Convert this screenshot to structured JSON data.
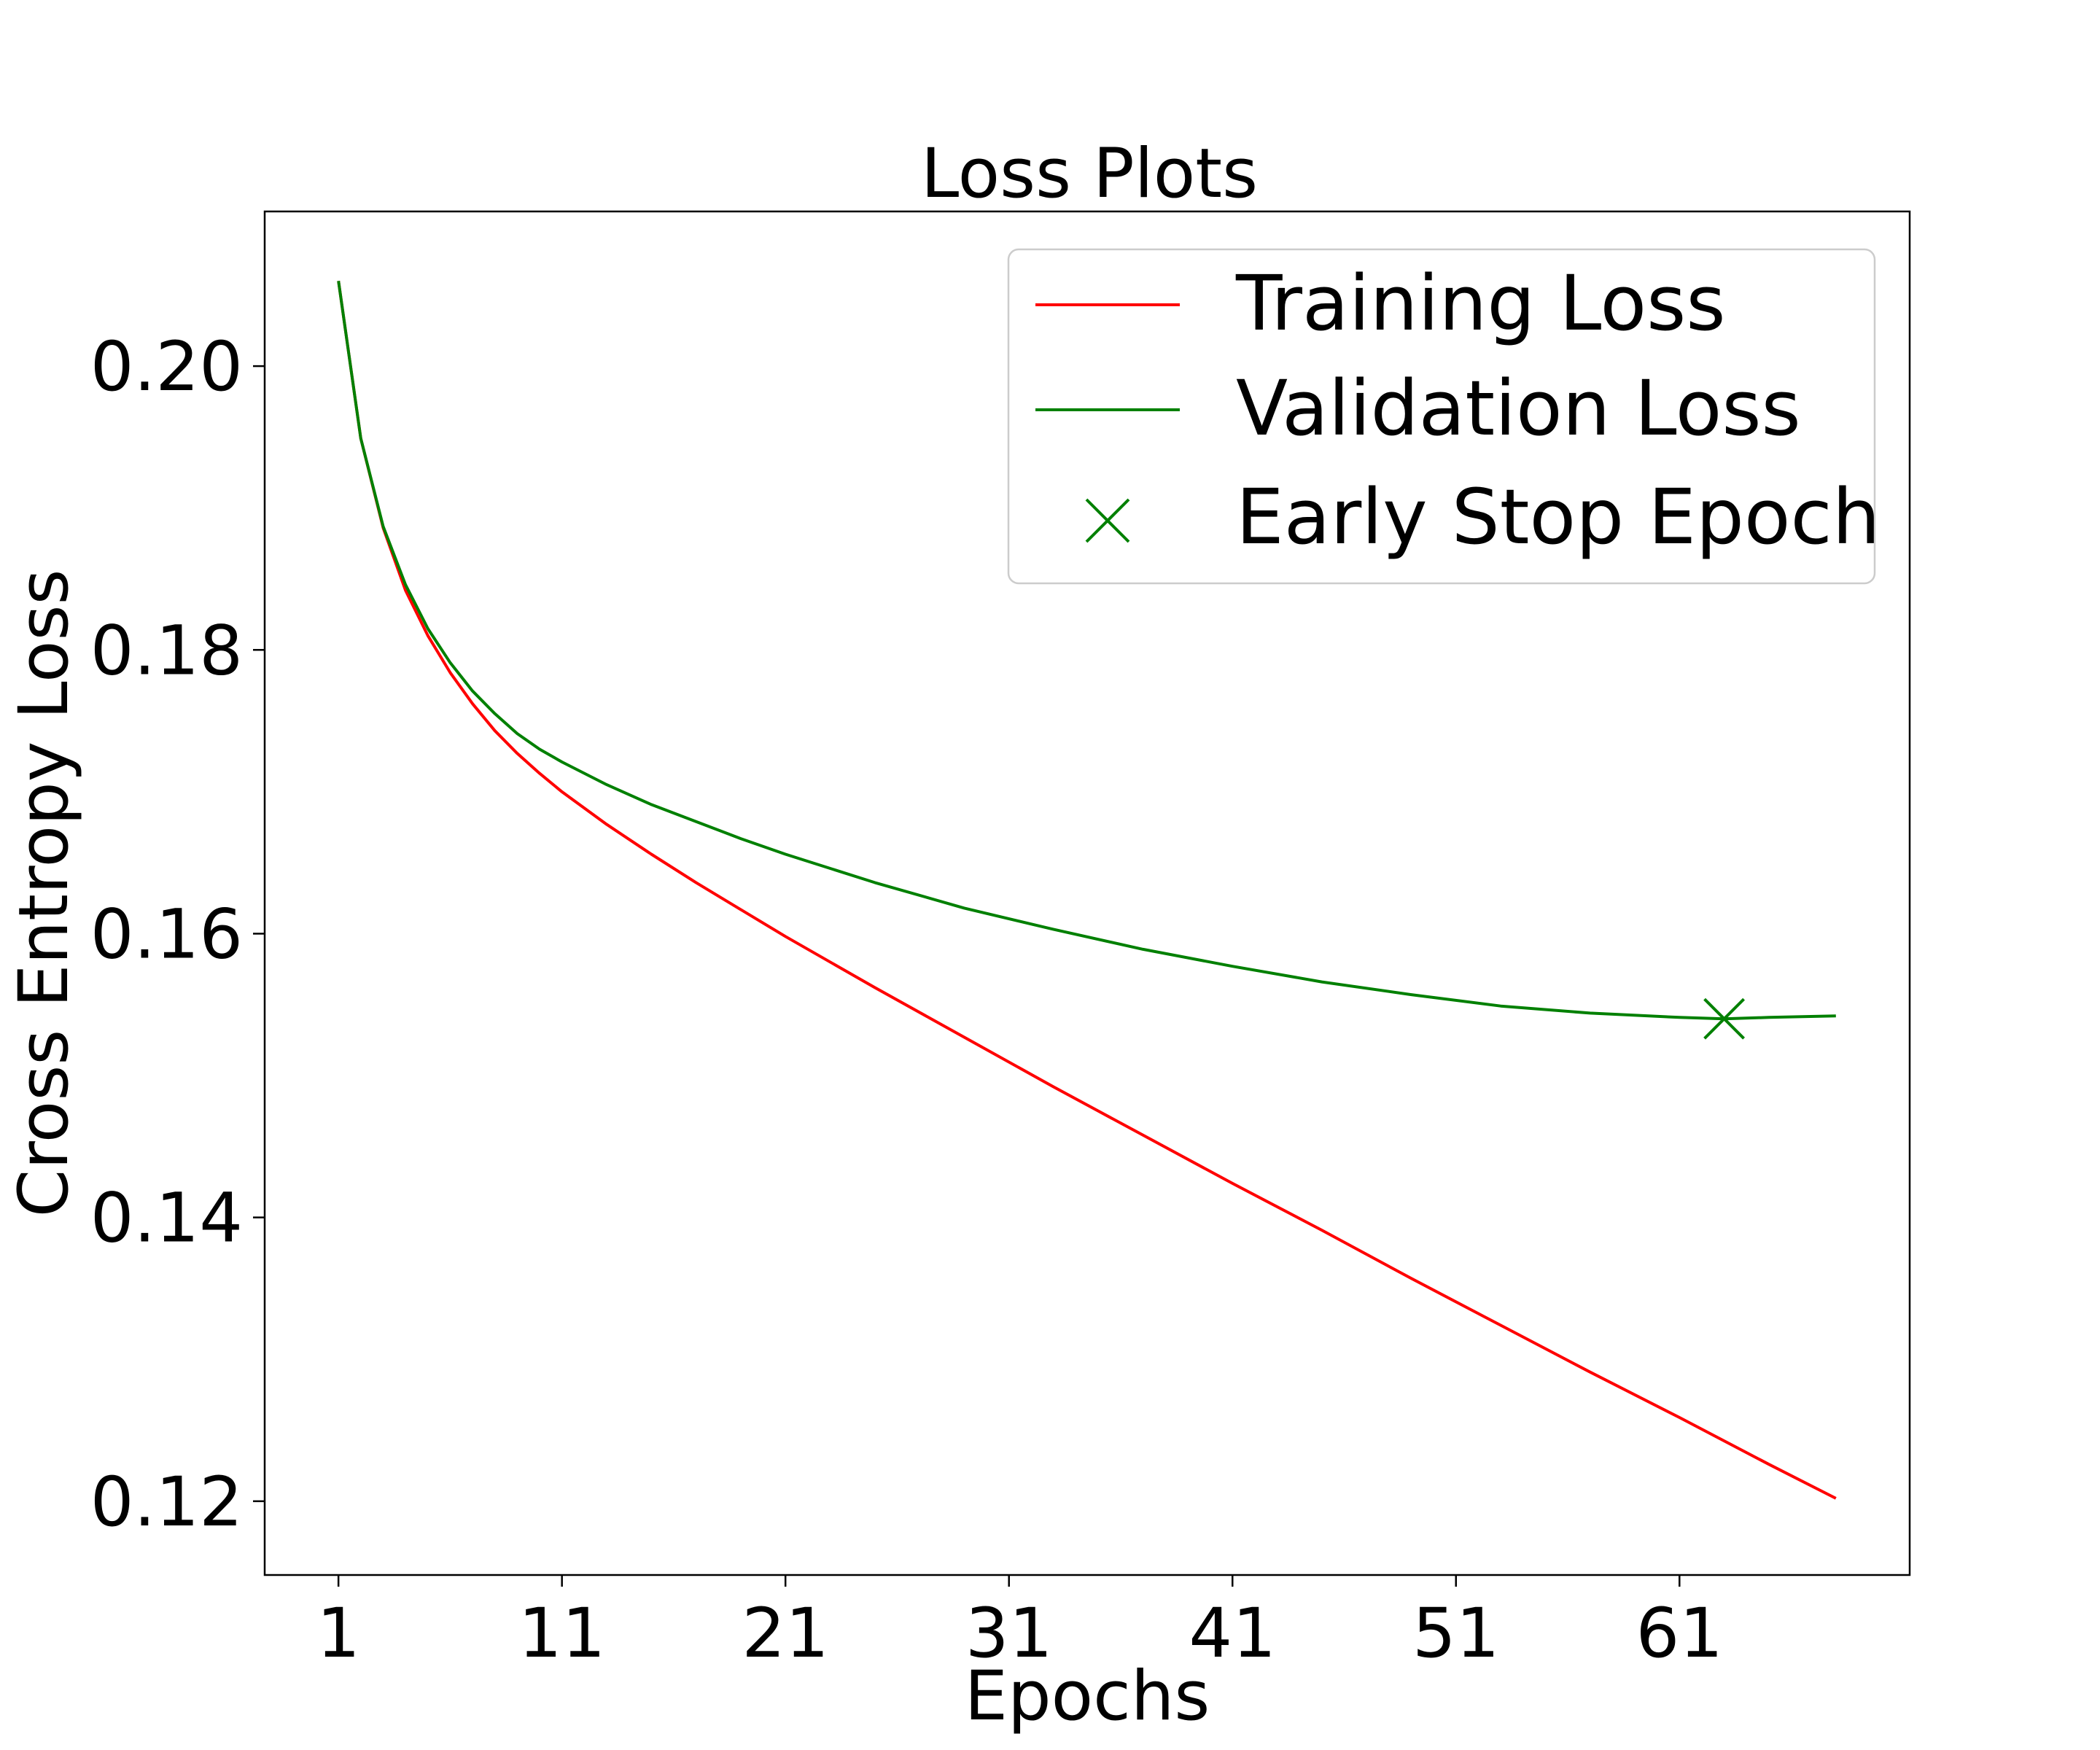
{
  "chart_data": {
    "type": "line",
    "title": "Loss Plots",
    "xlabel": "Epochs",
    "ylabel": "Cross Entropy Loss",
    "xlim": [
      -2.3,
      71.3
    ],
    "ylim": [
      0.1148,
      0.2109
    ],
    "xticks": [
      1,
      11,
      21,
      31,
      41,
      51,
      61
    ],
    "yticks": [
      0.12,
      0.14,
      0.16,
      0.18,
      0.2
    ],
    "ytick_labels": [
      "0.12",
      "0.14",
      "0.16",
      "0.18",
      "0.20"
    ],
    "grid": false,
    "legend_position": "top-right",
    "colors": {
      "training": "#ff0000",
      "validation": "#008000",
      "early_stop": "#008000"
    },
    "series": [
      {
        "name": "Training Loss",
        "x": [
          1,
          2,
          3,
          4,
          5,
          6,
          7,
          8,
          9,
          10,
          11,
          13,
          15,
          17,
          19,
          21,
          25,
          29,
          33,
          37,
          41,
          45,
          49,
          53,
          57,
          61,
          65,
          68
        ],
        "y": [
          0.206,
          0.1949,
          0.1886,
          0.1842,
          0.181,
          0.1784,
          0.1762,
          0.1743,
          0.1727,
          0.1713,
          0.17,
          0.1677,
          0.1656,
          0.1636,
          0.1617,
          0.1598,
          0.1562,
          0.1527,
          0.1492,
          0.1458,
          0.1424,
          0.1391,
          0.1357,
          0.1324,
          0.1291,
          0.1259,
          0.1226,
          0.1202
        ]
      },
      {
        "name": "Validation Loss",
        "x": [
          1,
          2,
          3,
          4,
          5,
          6,
          7,
          8,
          9,
          10,
          11,
          13,
          15,
          17,
          19,
          21,
          25,
          29,
          33,
          37,
          41,
          45,
          49,
          53,
          57,
          61,
          63,
          65,
          68
        ],
        "y": [
          0.206,
          0.1949,
          0.1887,
          0.1846,
          0.1815,
          0.1791,
          0.1771,
          0.1755,
          0.1741,
          0.173,
          0.1721,
          0.1705,
          0.1691,
          0.1679,
          0.1667,
          0.1656,
          0.1636,
          0.1618,
          0.1603,
          0.1589,
          0.1577,
          0.1566,
          0.1557,
          0.1549,
          0.1544,
          0.1541,
          0.154,
          0.1541,
          0.1542
        ]
      }
    ],
    "markers": [
      {
        "name": "Early Stop Epoch",
        "x": 63,
        "y": 0.154,
        "symbol": "x"
      }
    ]
  }
}
